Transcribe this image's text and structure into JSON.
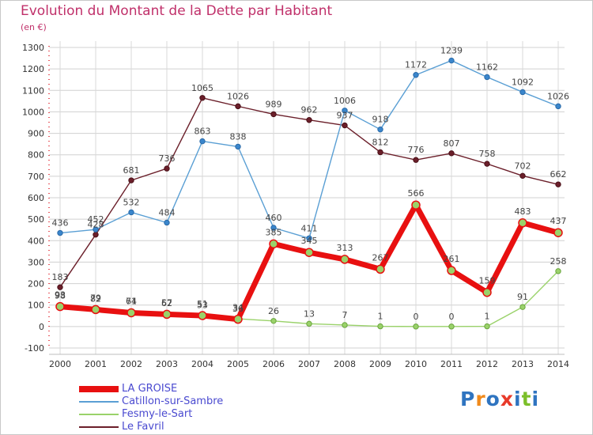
{
  "header": {
    "title": "Evolution du Montant de la Dette par Habitant",
    "subtitle": "(en €)"
  },
  "logo": {
    "text": "Proxiti",
    "colors": [
      "#2f74c0",
      "#f08a1c",
      "#2f74c0",
      "#e83a2a",
      "#2f74c0",
      "#7cbf2a",
      "#2f74c0"
    ]
  },
  "chart_data": {
    "type": "line",
    "title": "Evolution du Montant de la Dette par Habitant",
    "subtitle": "(en €)",
    "xlabel": "",
    "ylabel": "",
    "x": [
      "2000",
      "2001",
      "2002",
      "2003",
      "2004",
      "2005",
      "2006",
      "2007",
      "2008",
      "2009",
      "2010",
      "2011",
      "2012",
      "2013",
      "2014"
    ],
    "ylim": [
      -100,
      1300
    ],
    "yticks": [
      -100,
      0,
      100,
      200,
      300,
      400,
      500,
      600,
      700,
      800,
      900,
      1000,
      1100,
      1200,
      1300
    ],
    "grid": true,
    "legend": "bottom-left",
    "series": [
      {
        "name": "Le Favril",
        "color": "#6b1f2a",
        "values": [
          183,
          428,
          681,
          736,
          1065,
          1026,
          989,
          962,
          937,
          812,
          776,
          807,
          758,
          702,
          662
        ],
        "labels": [
          "183",
          "428",
          "681",
          "736",
          "1065",
          "1026",
          "989",
          "962",
          "937",
          "812",
          "776",
          "807",
          "758",
          "702",
          "662"
        ]
      },
      {
        "name": "Catillon-sur-Sambre",
        "color": "#5a9fd4",
        "values": [
          436,
          452,
          532,
          484,
          863,
          838,
          460,
          411,
          1006,
          918,
          1172,
          1239,
          1162,
          1092,
          1026
        ],
        "labels": [
          "436",
          "452",
          "532",
          "484",
          "863",
          "838",
          "460",
          "411",
          "1006",
          "918",
          "1172",
          "1239",
          "1162",
          "1092",
          "1026"
        ]
      },
      {
        "name": "Fesmy-le-Sart",
        "color": "#9ad26a",
        "values": [
          98,
          82,
          71,
          62,
          53,
          36,
          26,
          13,
          7,
          1,
          0,
          0,
          1,
          91,
          258
        ],
        "labels": [
          "98",
          "82",
          "71",
          "62",
          "53",
          "36",
          "26",
          "13",
          "7",
          "1",
          "0",
          "0",
          "1",
          "91",
          "258"
        ]
      },
      {
        "name": "LA GROISE",
        "color": "#e81010",
        "values": [
          93,
          79,
          64,
          57,
          51,
          34,
          385,
          345,
          313,
          267,
          566,
          261,
          159,
          483,
          437
        ],
        "labels": [
          "93",
          "79",
          "64",
          "57",
          "51",
          "34",
          "385",
          "345",
          "313",
          "267",
          "566",
          "261",
          "159",
          "483",
          "437"
        ]
      }
    ],
    "legend_order": [
      "LA GROISE",
      "Catillon-sur-Sambre",
      "Fesmy-le-Sart",
      "Le Favril"
    ]
  }
}
